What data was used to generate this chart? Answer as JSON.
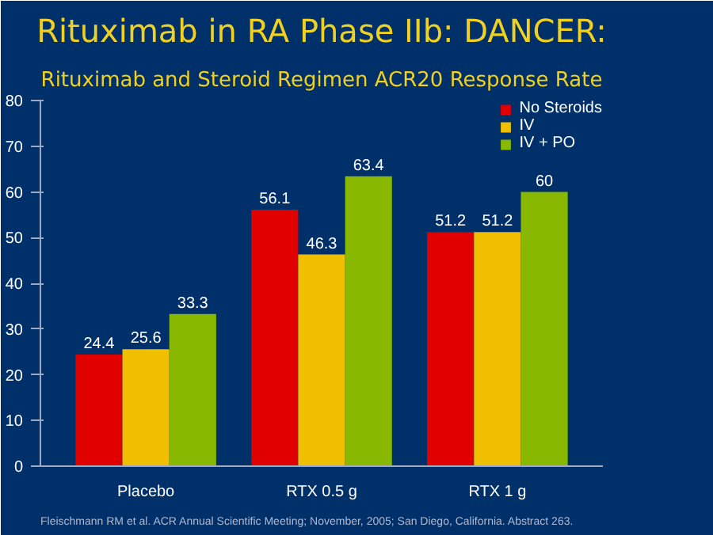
{
  "chart_data": {
    "type": "bar",
    "title": "Rituximab in RA Phase IIb: DANCER:",
    "subtitle": "Rituximab and Steroid Regimen ACR20 Response Rate",
    "categories": [
      "Placebo",
      "RTX 0.5 g",
      "RTX 1 g"
    ],
    "series": [
      {
        "name": "No Steroids",
        "color": "#e00000",
        "values": [
          24.4,
          56.1,
          51.2
        ]
      },
      {
        "name": "IV",
        "color": "#f0c000",
        "values": [
          25.6,
          46.3,
          51.2
        ]
      },
      {
        "name": "IV + PO",
        "color": "#88b800",
        "values": [
          33.3,
          63.4,
          60
        ]
      }
    ],
    "ylim": [
      0,
      80
    ],
    "yticks": [
      0,
      10,
      20,
      30,
      40,
      50,
      60,
      70,
      80
    ],
    "grid": false,
    "legend": "top right",
    "data_labels": true,
    "annotations": [
      "Fleischmann RM et al. ACR Annual Scientific Meeting; November, 2005; San Diego, California. Abstract 263."
    ]
  }
}
